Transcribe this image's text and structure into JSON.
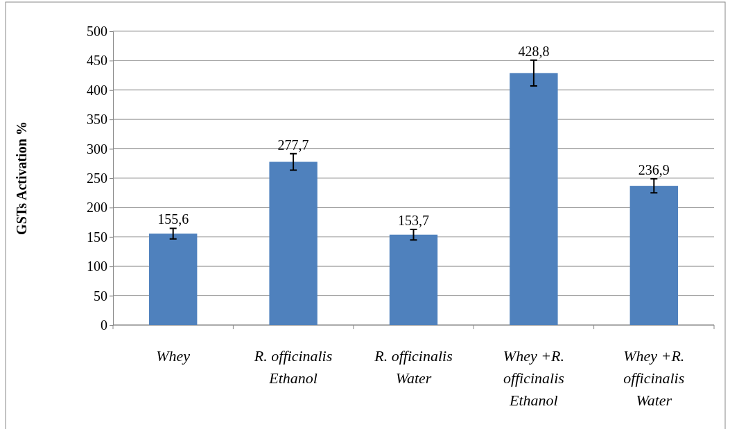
{
  "chart_data": {
    "type": "bar",
    "ylabel": "GSTs Activation %",
    "categories": [
      "Whey",
      "R. officinalis\nEthanol",
      "R. officinalis\nWater",
      "Whey +R.\nofficinalis\nEthanol",
      "Whey +R.\nofficinalis\nWater"
    ],
    "values": [
      155.6,
      277.7,
      153.7,
      428.8,
      236.9
    ],
    "errors": [
      9,
      14,
      9,
      22,
      12
    ],
    "value_labels": [
      "155,6",
      "277,7",
      "153,7",
      "428,8",
      "236,9"
    ],
    "color": "#4f81bd",
    "ylim": [
      0,
      500
    ],
    "yticks": [
      0,
      50,
      100,
      150,
      200,
      250,
      300,
      350,
      400,
      450,
      500
    ],
    "grid": "y"
  }
}
